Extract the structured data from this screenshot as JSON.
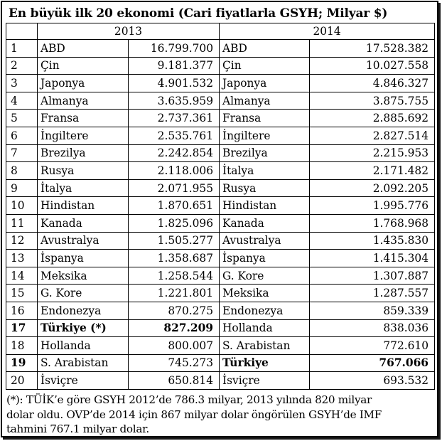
{
  "title": "En büyük ilk 20 ekonomi (Cari fiyatlarla GSYH; Milyar $)",
  "columns": {
    "y2013": "2013",
    "y2014": "2014"
  },
  "rows": [
    {
      "rank": "1",
      "c2013": "ABD",
      "v2013": "16.799.700",
      "c2014": "ABD",
      "v2014": "17.528.382",
      "bold2013": false,
      "bold2014": false
    },
    {
      "rank": "2",
      "c2013": "Çin",
      "v2013": "9.181.377",
      "c2014": "Çin",
      "v2014": "10.027.558",
      "bold2013": false,
      "bold2014": false
    },
    {
      "rank": "3",
      "c2013": "Japonya",
      "v2013": "4.901.532",
      "c2014": "Japonya",
      "v2014": "4.846.327",
      "bold2013": false,
      "bold2014": false
    },
    {
      "rank": "4",
      "c2013": "Almanya",
      "v2013": "3.635.959",
      "c2014": "Almanya",
      "v2014": "3.875.755",
      "bold2013": false,
      "bold2014": false
    },
    {
      "rank": "5",
      "c2013": "Fransa",
      "v2013": "2.737.361",
      "c2014": "Fransa",
      "v2014": "2.885.692",
      "bold2013": false,
      "bold2014": false
    },
    {
      "rank": "6",
      "c2013": "İngiltere",
      "v2013": "2.535.761",
      "c2014": "İngiltere",
      "v2014": "2.827.514",
      "bold2013": false,
      "bold2014": false
    },
    {
      "rank": "7",
      "c2013": "Brezilya",
      "v2013": "2.242.854",
      "c2014": "Brezilya",
      "v2014": "2.215.953",
      "bold2013": false,
      "bold2014": false
    },
    {
      "rank": "8",
      "c2013": "Rusya",
      "v2013": "2.118.006",
      "c2014": "İtalya",
      "v2014": "2.171.482",
      "bold2013": false,
      "bold2014": false
    },
    {
      "rank": "9",
      "c2013": "İtalya",
      "v2013": "2.071.955",
      "c2014": "Rusya",
      "v2014": "2.092.205",
      "bold2013": false,
      "bold2014": false
    },
    {
      "rank": "10",
      "c2013": "Hindistan",
      "v2013": "1.870.651",
      "c2014": "Hindistan",
      "v2014": "1.995.776",
      "bold2013": false,
      "bold2014": false
    },
    {
      "rank": "11",
      "c2013": "Kanada",
      "v2013": "1.825.096",
      "c2014": "Kanada",
      "v2014": "1.768.968",
      "bold2013": false,
      "bold2014": false
    },
    {
      "rank": "12",
      "c2013": "Avustralya",
      "v2013": "1.505.277",
      "c2014": "Avustralya",
      "v2014": "1.435.830",
      "bold2013": false,
      "bold2014": false
    },
    {
      "rank": "13",
      "c2013": "İspanya",
      "v2013": "1.358.687",
      "c2014": "İspanya",
      "v2014": "1.415.304",
      "bold2013": false,
      "bold2014": false
    },
    {
      "rank": "14",
      "c2013": "Meksika",
      "v2013": "1.258.544",
      "c2014": "G. Kore",
      "v2014": "1.307.887",
      "bold2013": false,
      "bold2014": false
    },
    {
      "rank": "15",
      "c2013": "G. Kore",
      "v2013": "1.221.801",
      "c2014": "Meksika",
      "v2014": "1.287.557",
      "bold2013": false,
      "bold2014": false
    },
    {
      "rank": "16",
      "c2013": "Endonezya",
      "v2013": "870.275",
      "c2014": "Endonezya",
      "v2014": "859.339",
      "bold2013": false,
      "bold2014": false
    },
    {
      "rank": "17",
      "c2013": "Türkiye (*)",
      "v2013": "827.209",
      "c2014": "Hollanda",
      "v2014": "838.036",
      "bold2013": true,
      "bold2014": false
    },
    {
      "rank": "18",
      "c2013": "Hollanda",
      "v2013": "800.007",
      "c2014": "S. Arabistan",
      "v2014": "772.610",
      "bold2013": false,
      "bold2014": false
    },
    {
      "rank": "19",
      "c2013": "S. Arabistan",
      "v2013": "745.273",
      "c2014": "Türkiye",
      "v2014": "767.066",
      "bold2013": false,
      "bold2014": true
    },
    {
      "rank": "20",
      "c2013": "İsviçre",
      "v2013": "650.814",
      "c2014": "İsviçre",
      "v2014": "693.532",
      "bold2013": false,
      "bold2014": false
    }
  ],
  "footnote": {
    "line1": "(*):  TÜİK’e göre GSYH 2012’de 786.3 milyar, 2013 yılında 820 milyar",
    "line2": "dolar oldu. OVP’de 2014 için 867 milyar dolar öngörülen GSYH’de IMF",
    "line3": "tahmini 767.1 milyar dolar."
  }
}
